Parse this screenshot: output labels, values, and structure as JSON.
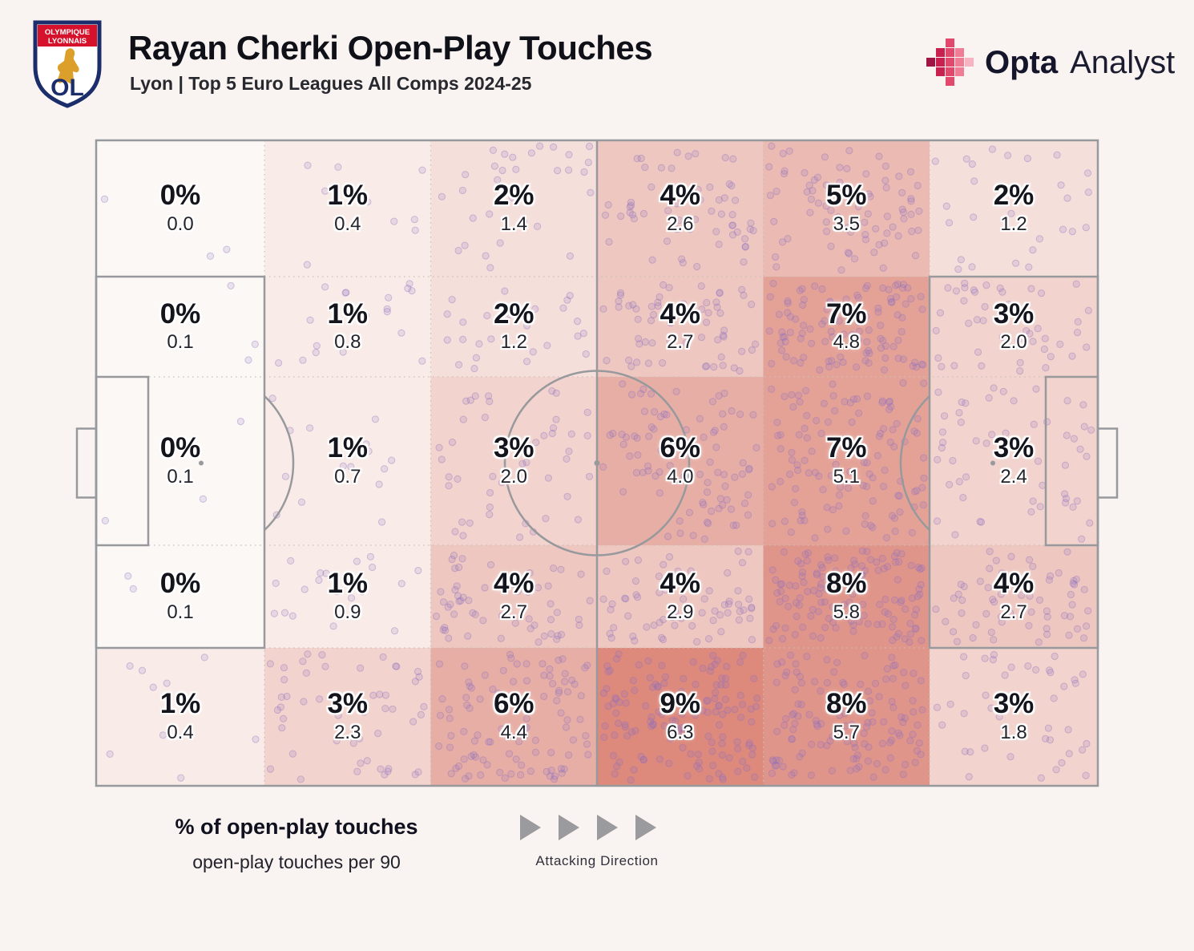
{
  "header": {
    "title": "Rayan Cherki Open-Play Touches",
    "subtitle": "Lyon | Top 5 Euro Leagues All Comps 2024-25",
    "badge": {
      "line1": "OLYMPIQUE",
      "line2": "LYONNAIS",
      "initials": "OL"
    },
    "brand": {
      "primary": "Opta",
      "secondary": "Analyst"
    }
  },
  "footer": {
    "legend_primary": "% of open-play touches",
    "legend_secondary": "open-play touches per 90",
    "attacking_direction": "Attacking Direction"
  },
  "chart_data": {
    "type": "heatmap",
    "title": "Rayan Cherki Open-Play Touches",
    "subtitle": "Lyon | Top 5 Euro Leagues All Comps 2024-25",
    "grid": {
      "rows": 5,
      "cols": 6,
      "orientation": "attacking left-to-right, rows top-to-bottom"
    },
    "zones": [
      {
        "row": 0,
        "col": 0,
        "pct": 0,
        "per90": 0.0,
        "pct_label": "0%",
        "per90_label": "0.0"
      },
      {
        "row": 0,
        "col": 1,
        "pct": 1,
        "per90": 0.4,
        "pct_label": "1%",
        "per90_label": "0.4"
      },
      {
        "row": 0,
        "col": 2,
        "pct": 2,
        "per90": 1.4,
        "pct_label": "2%",
        "per90_label": "1.4"
      },
      {
        "row": 0,
        "col": 3,
        "pct": 4,
        "per90": 2.6,
        "pct_label": "4%",
        "per90_label": "2.6"
      },
      {
        "row": 0,
        "col": 4,
        "pct": 5,
        "per90": 3.5,
        "pct_label": "5%",
        "per90_label": "3.5"
      },
      {
        "row": 0,
        "col": 5,
        "pct": 2,
        "per90": 1.2,
        "pct_label": "2%",
        "per90_label": "1.2"
      },
      {
        "row": 1,
        "col": 0,
        "pct": 0,
        "per90": 0.1,
        "pct_label": "0%",
        "per90_label": "0.1"
      },
      {
        "row": 1,
        "col": 1,
        "pct": 1,
        "per90": 0.8,
        "pct_label": "1%",
        "per90_label": "0.8"
      },
      {
        "row": 1,
        "col": 2,
        "pct": 2,
        "per90": 1.2,
        "pct_label": "2%",
        "per90_label": "1.2"
      },
      {
        "row": 1,
        "col": 3,
        "pct": 4,
        "per90": 2.7,
        "pct_label": "4%",
        "per90_label": "2.7"
      },
      {
        "row": 1,
        "col": 4,
        "pct": 7,
        "per90": 4.8,
        "pct_label": "7%",
        "per90_label": "4.8"
      },
      {
        "row": 1,
        "col": 5,
        "pct": 3,
        "per90": 2.0,
        "pct_label": "3%",
        "per90_label": "2.0"
      },
      {
        "row": 2,
        "col": 0,
        "pct": 0,
        "per90": 0.1,
        "pct_label": "0%",
        "per90_label": "0.1"
      },
      {
        "row": 2,
        "col": 1,
        "pct": 1,
        "per90": 0.7,
        "pct_label": "1%",
        "per90_label": "0.7"
      },
      {
        "row": 2,
        "col": 2,
        "pct": 3,
        "per90": 2.0,
        "pct_label": "3%",
        "per90_label": "2.0"
      },
      {
        "row": 2,
        "col": 3,
        "pct": 6,
        "per90": 4.0,
        "pct_label": "6%",
        "per90_label": "4.0"
      },
      {
        "row": 2,
        "col": 4,
        "pct": 7,
        "per90": 5.1,
        "pct_label": "7%",
        "per90_label": "5.1"
      },
      {
        "row": 2,
        "col": 5,
        "pct": 3,
        "per90": 2.4,
        "pct_label": "3%",
        "per90_label": "2.4"
      },
      {
        "row": 3,
        "col": 0,
        "pct": 0,
        "per90": 0.1,
        "pct_label": "0%",
        "per90_label": "0.1"
      },
      {
        "row": 3,
        "col": 1,
        "pct": 1,
        "per90": 0.9,
        "pct_label": "1%",
        "per90_label": "0.9"
      },
      {
        "row": 3,
        "col": 2,
        "pct": 4,
        "per90": 2.7,
        "pct_label": "4%",
        "per90_label": "2.7"
      },
      {
        "row": 3,
        "col": 3,
        "pct": 4,
        "per90": 2.9,
        "pct_label": "4%",
        "per90_label": "2.9"
      },
      {
        "row": 3,
        "col": 4,
        "pct": 8,
        "per90": 5.8,
        "pct_label": "8%",
        "per90_label": "5.8"
      },
      {
        "row": 3,
        "col": 5,
        "pct": 4,
        "per90": 2.7,
        "pct_label": "4%",
        "per90_label": "2.7"
      },
      {
        "row": 4,
        "col": 0,
        "pct": 1,
        "per90": 0.4,
        "pct_label": "1%",
        "per90_label": "0.4"
      },
      {
        "row": 4,
        "col": 1,
        "pct": 3,
        "per90": 2.3,
        "pct_label": "3%",
        "per90_label": "2.3"
      },
      {
        "row": 4,
        "col": 2,
        "pct": 6,
        "per90": 4.4,
        "pct_label": "6%",
        "per90_label": "4.4"
      },
      {
        "row": 4,
        "col": 3,
        "pct": 9,
        "per90": 6.3,
        "pct_label": "9%",
        "per90_label": "6.3"
      },
      {
        "row": 4,
        "col": 4,
        "pct": 8,
        "per90": 5.7,
        "pct_label": "8%",
        "per90_label": "5.7"
      },
      {
        "row": 4,
        "col": 5,
        "pct": 3,
        "per90": 1.8,
        "pct_label": "3%",
        "per90_label": "1.8"
      }
    ],
    "legend": {
      "primary": "% of open-play touches",
      "secondary": "open-play touches per 90"
    },
    "attacking_direction_label": "Attacking Direction",
    "colors": {
      "background": "#f9f4f1",
      "zone_low": "#fcf8f6",
      "zone_high": "#dd897c",
      "dot": "#8d6fc0",
      "pitch_line": "#97999d",
      "grid_line": "#c9beb9",
      "text": "#14141d"
    }
  }
}
